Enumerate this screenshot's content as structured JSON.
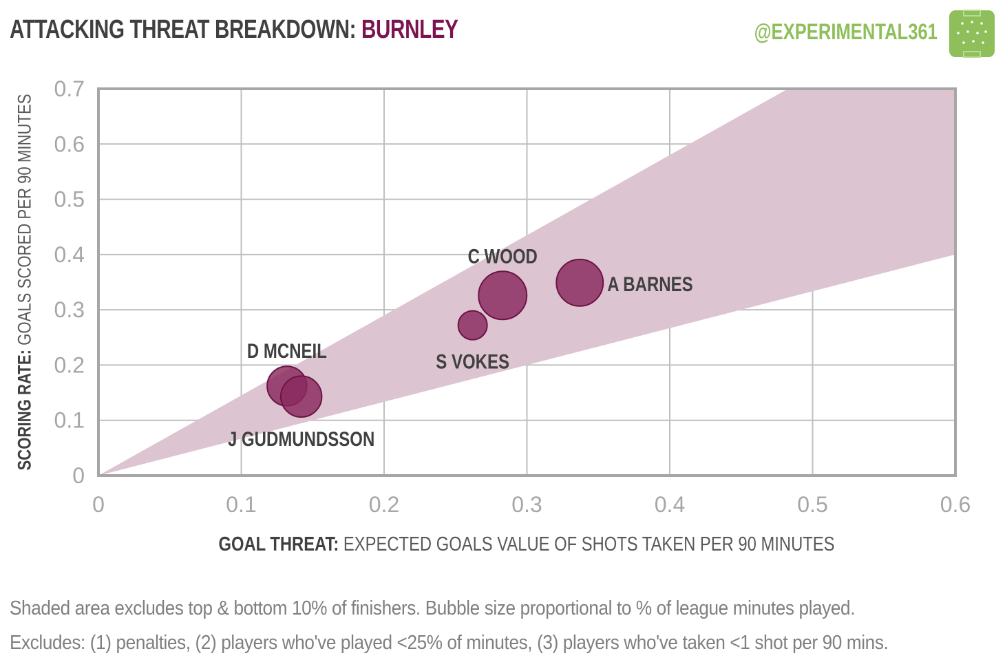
{
  "header": {
    "title": "ATTACKING THREAT BREAKDOWN:",
    "team": "BURNLEY",
    "handle": "@EXPERIMENTAL361"
  },
  "colors": {
    "accent": "#7b1450",
    "bubble": "#8a2a5e",
    "band": "#dcc4d0",
    "handle": "#8fbf5a",
    "grid": "#bfbfbf",
    "frame": "#a6a6a6"
  },
  "axes": {
    "x_label_bold": "GOAL THREAT:",
    "x_label_rest": "EXPECTED GOALS VALUE OF SHOTS TAKEN PER 90 MINUTES",
    "y_label_bold": "SCORING RATE:",
    "y_label_rest": "GOALS SCORED PER 90 MINUTES"
  },
  "footnotes": [
    "Shaded area excludes top & bottom  10% of finishers. Bubble size proportional to  % of league minutes played.",
    "Excludes: (1) penalties, (2) players who've played <25% of minutes, (3) players who've taken <1 shot per 90 mins."
  ],
  "chart_data": {
    "type": "scatter",
    "xlim": [
      0,
      0.6
    ],
    "ylim": [
      0,
      0.7
    ],
    "x_ticks": [
      "0",
      "0.1",
      "0.2",
      "0.3",
      "0.4",
      "0.5",
      "0.6"
    ],
    "y_ticks": [
      "0",
      "0.1",
      "0.2",
      "0.3",
      "0.4",
      "0.5",
      "0.6",
      "0.7"
    ],
    "grid": true,
    "band": {
      "lower_slope": 0.667,
      "upper_slope": 1.45
    },
    "points": [
      {
        "name": "D MCNEIL",
        "x": 0.132,
        "y": 0.162,
        "minutes_pct": 56,
        "label_pos": "above"
      },
      {
        "name": "J GUDMUNDSSON",
        "x": 0.142,
        "y": 0.143,
        "minutes_pct": 60,
        "label_pos": "below"
      },
      {
        "name": "S VOKES",
        "x": 0.262,
        "y": 0.272,
        "minutes_pct": 30,
        "label_pos": "below"
      },
      {
        "name": "C WOOD",
        "x": 0.283,
        "y": 0.326,
        "minutes_pct": 83,
        "label_pos": "above"
      },
      {
        "name": "A BARNES",
        "x": 0.337,
        "y": 0.349,
        "minutes_pct": 78,
        "label_pos": "right"
      }
    ]
  }
}
